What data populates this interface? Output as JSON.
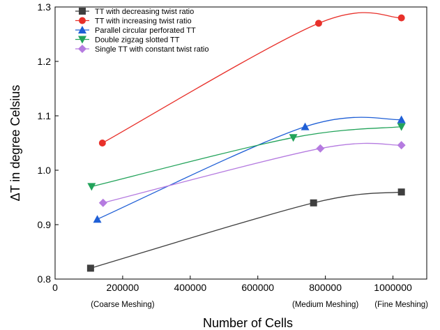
{
  "chart_data": {
    "type": "scatter",
    "title": "",
    "xlabel": "Number of Cells",
    "ylabel": "ΔT in degree Celsius",
    "xlim": [
      0,
      1100000
    ],
    "ylim": [
      0.8,
      1.3
    ],
    "xticks": [
      0,
      200000,
      400000,
      600000,
      800000,
      1000000
    ],
    "xtick_labels": [
      "0",
      "200000",
      "400000",
      "600000",
      "800000",
      "1000000"
    ],
    "yticks": [
      0.8,
      0.9,
      1.0,
      1.1,
      1.2,
      1.3
    ],
    "ytick_labels": [
      "0.8",
      "0.9",
      "1.0",
      "1.1",
      "1.2",
      "1.3"
    ],
    "mesh_labels": [
      {
        "x": 200000,
        "text": "(Coarse Meshing)"
      },
      {
        "x": 800000,
        "text": "(Medium Meshing)"
      },
      {
        "x": 1025000,
        "text": "(Fine Meshing)"
      }
    ],
    "grid": false,
    "legend_position": "top-left",
    "series": [
      {
        "name": "TT with decreasing twist ratio",
        "color": "#3f3f3f",
        "marker": "square",
        "x": [
          105000,
          765000,
          1025000
        ],
        "y": [
          0.82,
          0.94,
          0.96
        ]
      },
      {
        "name": "TT with increasing twist ratio",
        "color": "#e8302a",
        "marker": "circle",
        "x": [
          140000,
          780000,
          1025000
        ],
        "y": [
          1.05,
          1.27,
          1.28
        ]
      },
      {
        "name": "Parallel circular perforated TT",
        "color": "#1f5fd6",
        "marker": "triangle-up",
        "x": [
          125000,
          740000,
          1025000
        ],
        "y": [
          0.91,
          1.08,
          1.093
        ]
      },
      {
        "name": "Double zigzag slotted TT",
        "color": "#22a35a",
        "marker": "triangle-down",
        "x": [
          108000,
          705000,
          1025000
        ],
        "y": [
          0.97,
          1.06,
          1.08
        ]
      },
      {
        "name": "Single TT with constant twist ratio",
        "color": "#b57be0",
        "marker": "diamond",
        "x": [
          142000,
          785000,
          1025000
        ],
        "y": [
          0.94,
          1.04,
          1.046
        ]
      }
    ]
  }
}
